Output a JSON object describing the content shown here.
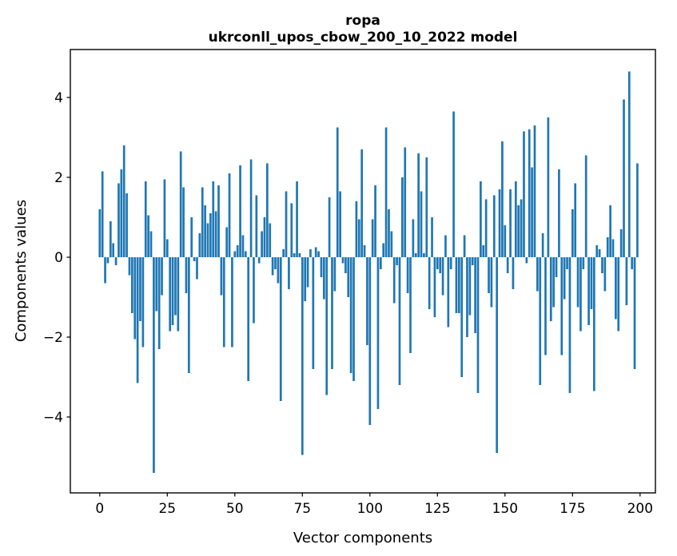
{
  "figure": {
    "title_line1": "ropa",
    "title_line2": "ukrconll_upos_cbow_200_10_2022 model",
    "xlabel": "Vector components",
    "ylabel": "Components values"
  },
  "chart_data": {
    "type": "bar",
    "title": "ropa\nukrconll_upos_cbow_200_10_2022 model",
    "xlabel": "Vector components",
    "ylabel": "Components values",
    "bar_color": "#1f77b4",
    "spine_color": "#000000",
    "background": "#ffffff",
    "bar_width": 0.8,
    "grid": false,
    "legend": null,
    "x_ticks": [
      0,
      25,
      50,
      75,
      100,
      125,
      150,
      175,
      200
    ],
    "y_ticks": [
      -4,
      -2,
      0,
      2,
      4
    ],
    "xlim": [
      -10.9,
      205.7
    ],
    "ylim": [
      -5.9,
      5.2
    ],
    "n_bars": 200,
    "values": [
      1.2,
      2.15,
      -0.65,
      -0.15,
      0.9,
      0.35,
      -0.2,
      1.85,
      2.2,
      2.8,
      1.6,
      -0.45,
      -1.4,
      -2.05,
      -3.15,
      -1.6,
      -2.25,
      1.9,
      1.05,
      0.65,
      -5.4,
      -1.35,
      -2.3,
      -0.95,
      1.95,
      0.45,
      -1.85,
      -1.7,
      -1.45,
      -1.85,
      2.65,
      1.75,
      -0.9,
      -2.9,
      1.0,
      -0.1,
      -0.55,
      0.6,
      1.75,
      1.3,
      0.85,
      1.1,
      1.9,
      1.15,
      1.8,
      -0.95,
      -2.25,
      0.75,
      2.1,
      -2.25,
      0.15,
      0.3,
      2.3,
      0.55,
      0.15,
      -3.1,
      2.45,
      -1.65,
      1.55,
      -0.15,
      0.65,
      1.0,
      2.35,
      0.85,
      -0.45,
      -0.3,
      -0.65,
      -3.6,
      0.2,
      1.65,
      -0.8,
      1.35,
      0.1,
      1.9,
      0.1,
      -4.95,
      -1.1,
      -0.75,
      0.2,
      -2.8,
      0.25,
      0.15,
      -0.5,
      -1.05,
      -3.45,
      1.5,
      -2.8,
      -0.85,
      3.25,
      1.65,
      -0.15,
      -0.4,
      -1.0,
      -2.9,
      -3.1,
      1.4,
      0.95,
      2.7,
      0.3,
      -2.2,
      -4.2,
      0.95,
      1.8,
      -3.8,
      -0.3,
      0.35,
      3.25,
      1.2,
      0.65,
      -1.15,
      -0.2,
      -3.2,
      2.0,
      2.75,
      -0.9,
      -2.4,
      0.95,
      0.1,
      2.6,
      1.65,
      0.1,
      2.5,
      -1.3,
      1.0,
      -1.5,
      -0.3,
      -0.4,
      -0.95,
      0.55,
      -1.75,
      -0.3,
      3.65,
      -1.4,
      -1.4,
      -3.0,
      0.55,
      -2.0,
      -1.45,
      -0.2,
      -1.9,
      -3.4,
      1.9,
      0.3,
      1.45,
      -0.9,
      -1.25,
      1.55,
      -4.9,
      1.7,
      2.9,
      0.8,
      -0.4,
      1.7,
      -0.8,
      1.9,
      1.3,
      1.45,
      3.15,
      -0.15,
      3.2,
      2.25,
      3.3,
      -0.85,
      -3.2,
      0.6,
      -2.45,
      3.5,
      -1.6,
      -1.25,
      -0.5,
      2.2,
      -2.45,
      -1.05,
      -0.3,
      -3.4,
      1.2,
      1.85,
      -1.25,
      -1.85,
      -0.3,
      2.55,
      -1.7,
      -1.3,
      -3.35,
      0.3,
      0.2,
      -0.4,
      -0.85,
      0.5,
      1.3,
      0.45,
      -1.55,
      -1.85,
      0.7,
      3.95,
      -1.2,
      4.65,
      -0.3,
      -2.8,
      2.35
    ]
  }
}
